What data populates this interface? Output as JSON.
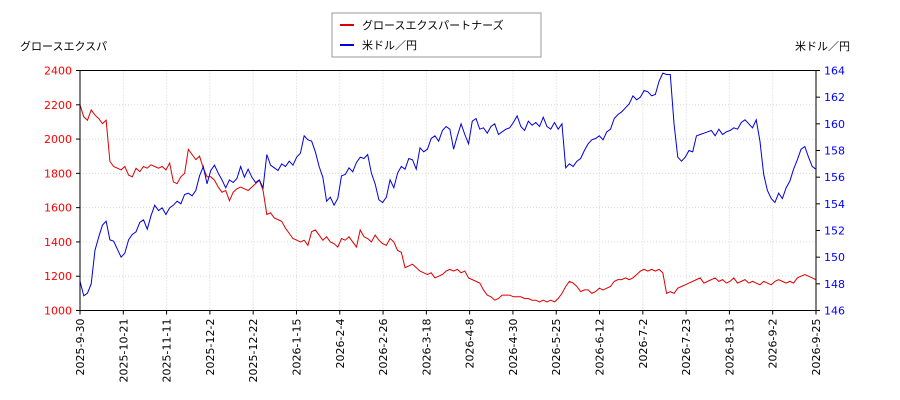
{
  "chart_data": {
    "type": "line",
    "legend": {
      "placement": "top-center"
    },
    "left_axis_label": "グロースエクスパ",
    "right_axis_label": "米ドル／円",
    "x_ticks": [
      "2025-9-30",
      "2025-10-21",
      "2025-11-11",
      "2025-12-2",
      "2025-12-22",
      "2026-1-15",
      "2026-2-4",
      "2026-2-26",
      "2026-3-18",
      "2026-4-8",
      "2026-4-30",
      "2026-5-25",
      "2026-6-12",
      "2026-7-2",
      "2026-7-23",
      "2026-8-13",
      "2026-9-2",
      "2026-9-25"
    ],
    "y_left": {
      "min": 1000,
      "max": 2400,
      "ticks": [
        1000,
        1200,
        1400,
        1600,
        1800,
        2000,
        2200,
        2400
      ],
      "color": "#ff0000"
    },
    "y_right": {
      "min": 146,
      "max": 164,
      "ticks": [
        146,
        148,
        150,
        152,
        154,
        156,
        158,
        160,
        162,
        164
      ],
      "color": "#0000ff"
    },
    "grid": true,
    "series": [
      {
        "name": "グロースエクスパートナーズ",
        "axis": "left",
        "color": "#dd0000",
        "values": [
          2200,
          2130,
          2110,
          2170,
          2140,
          2120,
          2090,
          2110,
          1870,
          1840,
          1830,
          1820,
          1840,
          1790,
          1780,
          1830,
          1810,
          1840,
          1830,
          1850,
          1840,
          1830,
          1840,
          1820,
          1860,
          1750,
          1740,
          1780,
          1800,
          1940,
          1910,
          1880,
          1900,
          1830,
          1780,
          1780,
          1760,
          1720,
          1690,
          1700,
          1640,
          1690,
          1710,
          1720,
          1710,
          1700,
          1720,
          1740,
          1760,
          1700,
          1560,
          1570,
          1540,
          1530,
          1520,
          1480,
          1450,
          1420,
          1410,
          1400,
          1410,
          1380,
          1460,
          1470,
          1440,
          1410,
          1430,
          1400,
          1390,
          1370,
          1420,
          1410,
          1430,
          1400,
          1370,
          1470,
          1430,
          1420,
          1400,
          1440,
          1410,
          1390,
          1380,
          1420,
          1400,
          1350,
          1340,
          1250,
          1260,
          1270,
          1250,
          1230,
          1220,
          1210,
          1220,
          1190,
          1200,
          1210,
          1230,
          1240,
          1230,
          1240,
          1220,
          1230,
          1190,
          1180,
          1170,
          1160,
          1120,
          1090,
          1080,
          1060,
          1070,
          1090,
          1090,
          1090,
          1080,
          1080,
          1080,
          1070,
          1070,
          1060,
          1060,
          1050,
          1060,
          1050,
          1060,
          1050,
          1070,
          1100,
          1140,
          1170,
          1160,
          1140,
          1110,
          1120,
          1120,
          1100,
          1110,
          1130,
          1120,
          1130,
          1140,
          1170,
          1180,
          1180,
          1190,
          1180,
          1190,
          1210,
          1230,
          1240,
          1230,
          1240,
          1230,
          1240,
          1220,
          1100,
          1110,
          1100,
          1130,
          1140,
          1150,
          1160,
          1170,
          1180,
          1190,
          1160,
          1170,
          1180,
          1190,
          1170,
          1180,
          1160,
          1170,
          1190,
          1160,
          1170,
          1180,
          1160,
          1170,
          1160,
          1150,
          1170,
          1160,
          1150,
          1170,
          1180,
          1170,
          1160,
          1170,
          1160,
          1190,
          1200,
          1210,
          1200,
          1190,
          1180
        ]
      },
      {
        "name": "米ドル／円",
        "axis": "right",
        "color": "#0000dd",
        "values": [
          148.2,
          147.1,
          147.3,
          148.0,
          150.5,
          151.5,
          152.4,
          152.7,
          151.3,
          151.2,
          150.6,
          150.0,
          150.3,
          151.3,
          151.7,
          151.9,
          152.6,
          152.8,
          152.1,
          153.1,
          153.9,
          153.5,
          153.7,
          153.2,
          153.7,
          153.9,
          154.2,
          154.0,
          154.7,
          154.8,
          154.6,
          155.0,
          156.1,
          156.8,
          155.5,
          156.5,
          156.9,
          156.3,
          155.8,
          155.2,
          155.8,
          155.6,
          155.9,
          156.8,
          156.0,
          156.6,
          156.0,
          155.6,
          155.8,
          155.2,
          157.7,
          156.9,
          156.7,
          156.5,
          157.0,
          156.8,
          157.2,
          156.9,
          157.5,
          157.8,
          159.1,
          158.8,
          158.7,
          157.9,
          156.8,
          156.0,
          154.2,
          154.5,
          153.9,
          154.4,
          156.1,
          156.2,
          156.7,
          156.4,
          157.1,
          157.5,
          157.4,
          157.7,
          156.3,
          155.5,
          154.3,
          154.1,
          154.5,
          155.8,
          155.2,
          156.3,
          156.8,
          156.6,
          157.4,
          157.3,
          156.6,
          158.2,
          157.9,
          158.1,
          158.9,
          159.1,
          158.7,
          159.5,
          159.8,
          159.6,
          158.1,
          159.1,
          160.0,
          159.2,
          158.5,
          160.2,
          160.4,
          159.6,
          159.7,
          159.3,
          159.8,
          160.0,
          159.2,
          159.4,
          159.6,
          159.7,
          160.1,
          160.6,
          159.8,
          159.5,
          160.2,
          159.9,
          160.1,
          159.8,
          160.5,
          159.8,
          159.6,
          160.1,
          159.6,
          160.0,
          156.7,
          157.0,
          156.8,
          157.2,
          157.4,
          158.0,
          158.5,
          158.8,
          158.9,
          159.1,
          158.8,
          159.4,
          159.6,
          160.4,
          160.7,
          160.9,
          161.2,
          161.5,
          162.1,
          161.8,
          162.0,
          162.5,
          162.4,
          162.1,
          162.2,
          163.2,
          163.8,
          163.7,
          163.7,
          160.0,
          157.5,
          157.2,
          157.5,
          158.0,
          157.9,
          159.1,
          159.2,
          159.3,
          159.4,
          159.5,
          159.1,
          159.6,
          159.2,
          159.4,
          159.5,
          159.7,
          159.6,
          160.1,
          160.3,
          160.0,
          159.7,
          160.3,
          158.7,
          156.2,
          155.0,
          154.4,
          154.1,
          154.8,
          154.4,
          155.2,
          155.7,
          156.6,
          157.3,
          158.1,
          158.3,
          157.5,
          156.8,
          156.6
        ]
      }
    ]
  }
}
